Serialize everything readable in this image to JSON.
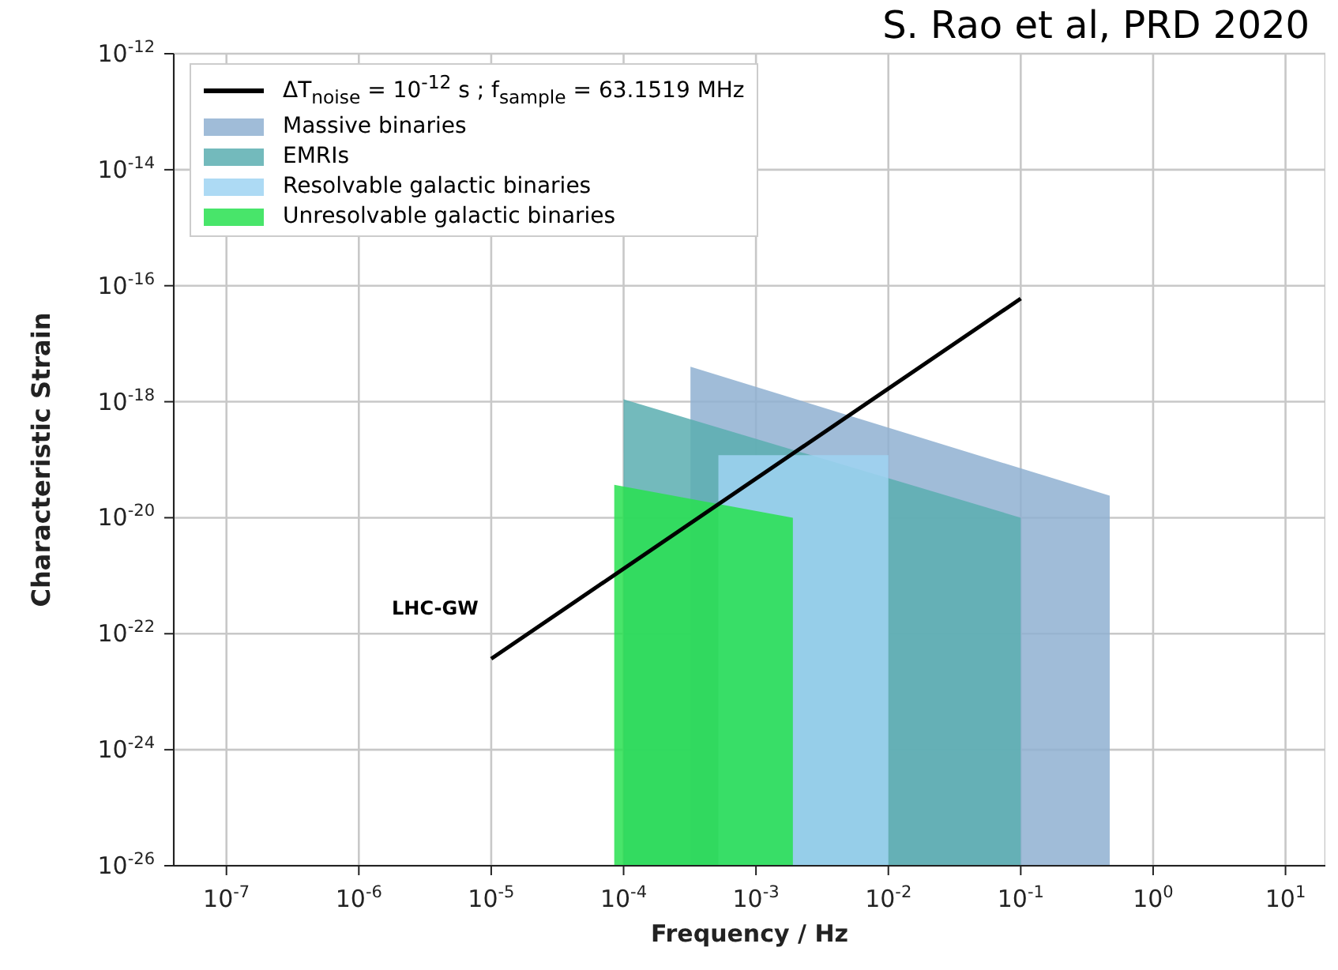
{
  "chart_data": {
    "type": "area",
    "xlabel": "Frequency / Hz",
    "ylabel": "Characteristic Strain",
    "annotations": [
      "S. Rao et al, PRD 2020",
      "LHC-GW"
    ],
    "log": "xy",
    "grid": true,
    "legend": "top left",
    "xlim": [
      4e-08,
      20
    ],
    "ylim": [
      1e-26,
      1e-12
    ],
    "xticks": [
      {
        "value": 1e-07,
        "label": "10$^{-7}$"
      },
      {
        "value": 1e-06,
        "label": "10$^{-6}$"
      },
      {
        "value": 1e-05,
        "label": "10$^{-5}$"
      },
      {
        "value": 0.0001,
        "label": "10$^{-4}$"
      },
      {
        "value": 0.001,
        "label": "10$^{-3}$"
      },
      {
        "value": 0.01,
        "label": "10$^{-2}$"
      },
      {
        "value": 0.1,
        "label": "10$^{-1}$"
      },
      {
        "value": 1,
        "label": "10$^{0}$"
      },
      {
        "value": 10,
        "label": "10$^{1}$"
      }
    ],
    "yticks": [
      {
        "value": 1e-26,
        "label": "10$^{-26}$"
      },
      {
        "value": 1e-24,
        "label": "10$^{-24}$"
      },
      {
        "value": 1e-22,
        "label": "10$^{-22}$"
      },
      {
        "value": 1e-20,
        "label": "10$^{-20}$"
      },
      {
        "value": 1e-18,
        "label": "10$^{-18}$"
      },
      {
        "value": 1e-16,
        "label": "10$^{-16}$"
      },
      {
        "value": 1e-14,
        "label": "10$^{-14}$"
      },
      {
        "value": 1e-12,
        "label": "10$^{-12}$"
      }
    ],
    "series": [
      {
        "name": "ΔT$_{noise}$ = 10$^{-12}$ s ; f$_{sample}$ = 63.1519 MHz",
        "type": "line",
        "color": "#000000",
        "x": [
          1e-05,
          0.1
        ],
        "values": [
          3.7e-23,
          6e-17
        ]
      },
      {
        "name": "Massive binaries",
        "color": "#8fb0d1",
        "x": [
          0.00032,
          0.47
        ],
        "values": [
          4e-18,
          2.4e-20
        ]
      },
      {
        "name": "EMRIs",
        "color": "#5aaeb0",
        "x": [
          0.0001,
          0.1
        ],
        "values": [
          1.1e-18,
          1e-20
        ]
      },
      {
        "name": "Resolvable galactic binaries",
        "color": "#9fd4f2",
        "x": [
          0.00052,
          0.01
        ],
        "values": [
          1.2e-19,
          1.2e-19
        ]
      },
      {
        "name": "Unresolvable galactic binaries",
        "color": "#28e050",
        "x": [
          8.5e-05,
          0.0019
        ],
        "values": [
          3.7e-20,
          1e-20
        ]
      }
    ]
  }
}
